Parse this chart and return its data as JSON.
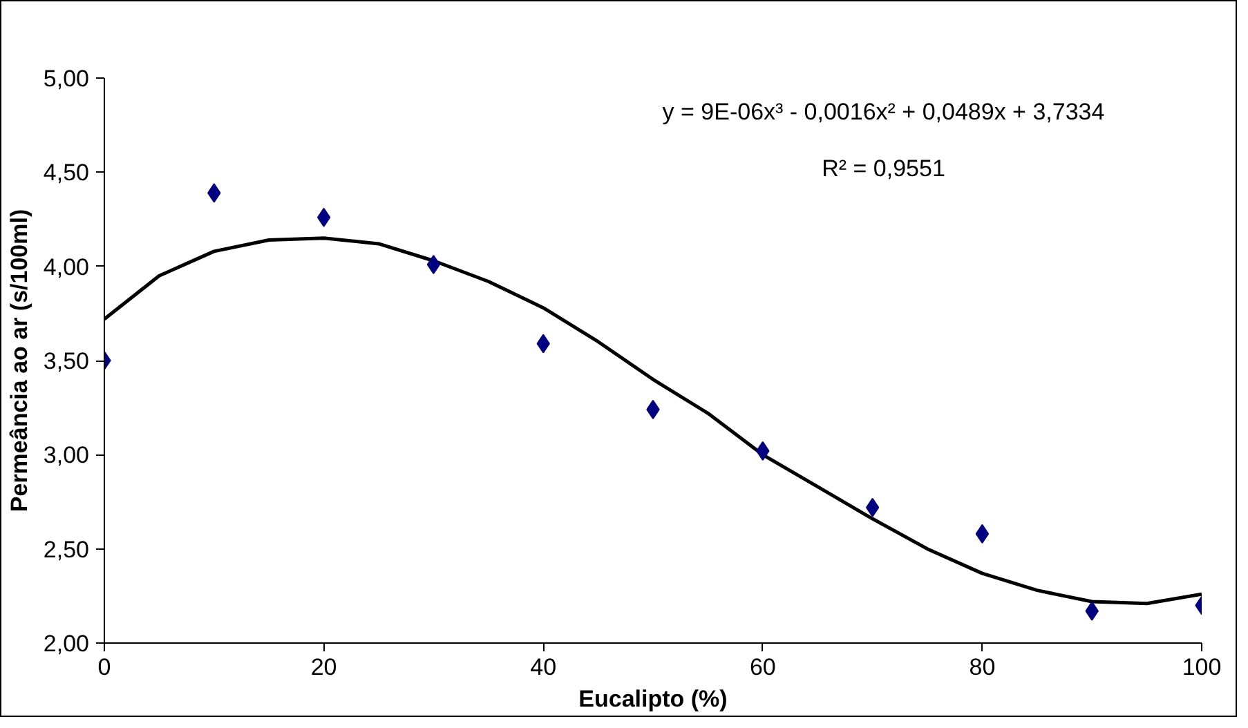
{
  "chart_data": {
    "type": "scatter",
    "xlabel": "Eucalipto (%)",
    "ylabel": "Permeância ao ar (s/100ml)",
    "xlim": [
      0,
      100
    ],
    "xticks": [
      0,
      20,
      40,
      60,
      80,
      100
    ],
    "ylim": [
      2,
      5
    ],
    "yticks": [
      {
        "value": 2,
        "label": "2,00"
      },
      {
        "value": 2.5,
        "label": "2,50"
      },
      {
        "value": 3,
        "label": "3,00"
      },
      {
        "value": 3.5,
        "label": "3,50"
      },
      {
        "value": 4,
        "label": "4,00"
      },
      {
        "value": 4.5,
        "label": "4,50"
      },
      {
        "value": 5,
        "label": "5,00"
      }
    ],
    "grid": false,
    "marker": "diamond",
    "annotations": [
      "y = 9E-06x³ - 0,0016x² + 0,0489x + 3,7334",
      "R² = 0,9551"
    ],
    "series": [
      {
        "color": "#000080",
        "x": [
          0,
          10,
          20,
          30,
          40,
          50,
          60,
          70,
          80,
          90,
          100
        ],
        "values": [
          3.5,
          4.39,
          4.26,
          4.01,
          3.59,
          3.24,
          3.02,
          2.72,
          2.58,
          2.17,
          2.2
        ]
      },
      {
        "type": "line",
        "color": "#000000",
        "marker": "none",
        "x": [
          0,
          5,
          10,
          15,
          20,
          25,
          30,
          35,
          40,
          45,
          50,
          55,
          60,
          65,
          70,
          75,
          80,
          85,
          90,
          95,
          100
        ],
        "values": [
          3.72,
          3.95,
          4.08,
          4.14,
          4.15,
          4.12,
          4.03,
          3.92,
          3.78,
          3.6,
          3.4,
          3.22,
          3.0,
          2.83,
          2.66,
          2.5,
          2.37,
          2.28,
          2.22,
          2.21,
          2.26
        ]
      }
    ]
  }
}
